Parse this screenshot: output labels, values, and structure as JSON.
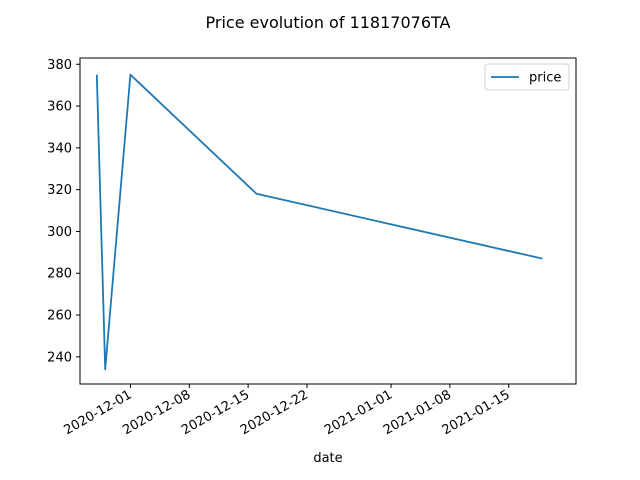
{
  "chart_data": {
    "type": "line",
    "title": "Price evolution of 11817076TA",
    "xlabel": "date",
    "ylabel": "",
    "x_axis_type": "date",
    "xlim": [
      "2020-11-25",
      "2021-01-23"
    ],
    "ylim": [
      227,
      383
    ],
    "x_ticks": [
      "2020-12-01",
      "2020-12-08",
      "2020-12-15",
      "2020-12-22",
      "2021-01-01",
      "2021-01-08",
      "2021-01-15"
    ],
    "y_ticks": [
      240,
      260,
      280,
      300,
      320,
      340,
      360,
      380
    ],
    "grid": false,
    "legend_position": "top-right",
    "series": [
      {
        "name": "price",
        "color": "#1f77b4",
        "x": [
          "2020-11-27",
          "2020-11-28",
          "2020-12-01",
          "2020-12-16",
          "2021-01-19"
        ],
        "values": [
          375,
          234,
          375,
          318,
          287
        ]
      }
    ]
  }
}
